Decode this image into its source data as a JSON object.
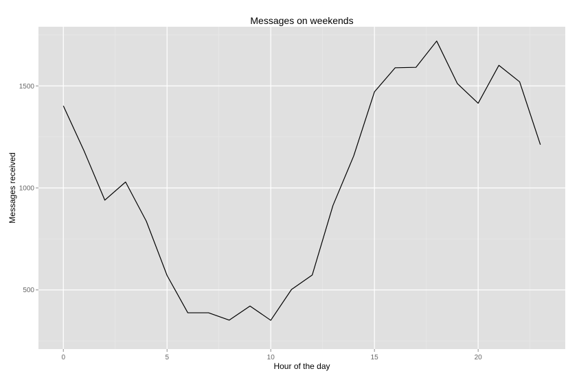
{
  "chart_data": {
    "type": "line",
    "title": "Messages on weekends",
    "xlabel": "Hour of the day",
    "ylabel": "Messages received",
    "xlim": [
      -1.2,
      24.2
    ],
    "ylim": [
      210,
      1790
    ],
    "x_ticks": [
      0,
      5,
      10,
      15,
      20
    ],
    "x_tick_labels": [
      "0",
      "5",
      "10",
      "15",
      "20"
    ],
    "x_minor_ticks": [
      2.5,
      7.5,
      12.5,
      17.5,
      22.5
    ],
    "y_ticks": [
      500,
      1000,
      1500
    ],
    "y_tick_labels": [
      "500",
      "1000",
      "1500"
    ],
    "y_minor_ticks": [
      250,
      750,
      1250,
      1750
    ],
    "grid": true,
    "legend": "none",
    "series": [
      {
        "x": [
          0,
          1,
          2,
          3,
          4,
          5,
          6,
          7,
          8,
          9,
          10,
          11,
          12,
          13,
          14,
          15,
          16,
          17,
          18,
          19,
          20,
          21,
          22,
          23
        ],
        "values": [
          1402,
          1181,
          940,
          1029,
          837,
          571,
          388,
          388,
          352,
          421,
          351,
          502,
          573,
          914,
          1157,
          1471,
          1589,
          1591,
          1720,
          1511,
          1415,
          1601,
          1520,
          1212
        ]
      }
    ]
  },
  "colors": {
    "panel_background": "#e0e0e0",
    "grid_major": "#ffffff",
    "grid_minor": "#eaeaea",
    "line": "#000000",
    "tick_text": "#666666",
    "label_text": "#000000"
  }
}
